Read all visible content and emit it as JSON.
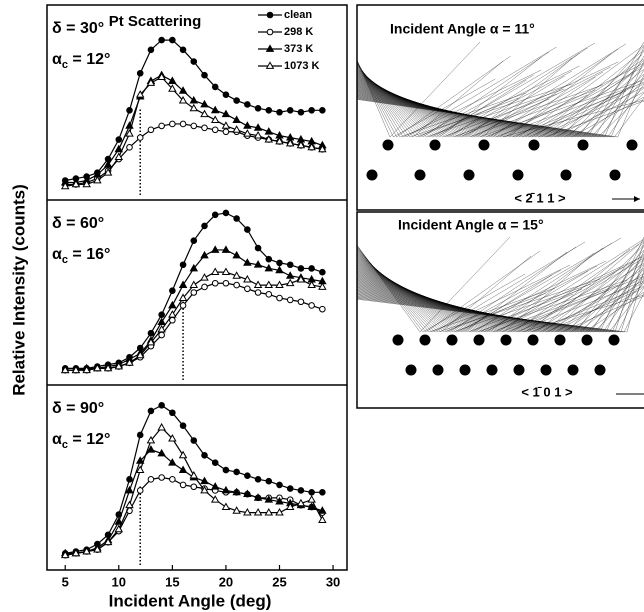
{
  "figure": {
    "ylabel": "Relative Intensity (counts)"
  },
  "chart_data": [
    {
      "type": "line",
      "title": "Pt Scattering",
      "annotation": "δ = 30°",
      "critical_angle": 12,
      "critical_label": [
        "α",
        "c",
        " = 12°"
      ],
      "legend": "upper right",
      "xlim": [
        3.3,
        31.3
      ],
      "ylim": [
        0,
        100
      ],
      "x": [
        5,
        6,
        7,
        8,
        9,
        10,
        11,
        12,
        13,
        14,
        15,
        16,
        17,
        18,
        19,
        20,
        21,
        22,
        23,
        24,
        25,
        26,
        27,
        28,
        29
      ],
      "series": [
        {
          "name": "clean",
          "color": "#000000",
          "marker": "filled-circle",
          "values": [
            10,
            11,
            12,
            14,
            21,
            31,
            46,
            65,
            77,
            82,
            82,
            77,
            71,
            64,
            58,
            54,
            51,
            49,
            47,
            46,
            45,
            46,
            45,
            46,
            46
          ]
        },
        {
          "name": "298 K",
          "color": "#000000",
          "marker": "open-circle",
          "values": [
            8,
            8,
            9,
            11,
            15,
            21,
            27,
            32,
            36,
            38,
            39,
            39,
            38,
            37,
            36,
            35,
            35,
            33,
            32,
            31,
            30,
            29,
            28,
            27,
            26
          ]
        },
        {
          "name": "373 K",
          "color": "#000000",
          "marker": "filled-triangle",
          "values": [
            9,
            9,
            10,
            13,
            18,
            26,
            38,
            53,
            61,
            64,
            61,
            56,
            51,
            49,
            46,
            44,
            41,
            38,
            37,
            35,
            33,
            32,
            31,
            30,
            28
          ]
        },
        {
          "name": "1073 K",
          "color": "#000000",
          "marker": "open-triangle",
          "values": [
            7,
            8,
            8,
            10,
            14,
            22,
            34,
            54,
            60,
            63,
            57,
            51,
            47,
            44,
            41,
            38,
            36,
            34,
            33,
            31,
            30,
            29,
            28,
            27,
            26
          ]
        }
      ]
    },
    {
      "type": "line",
      "annotation": "δ = 60°",
      "critical_angle": 16,
      "critical_label": [
        "α",
        "c",
        " = 16°"
      ],
      "xlim": [
        3.3,
        31.3
      ],
      "ylim": [
        0,
        100
      ],
      "x": [
        5,
        6,
        7,
        8,
        9,
        10,
        11,
        12,
        13,
        14,
        15,
        16,
        17,
        18,
        19,
        20,
        21,
        22,
        23,
        24,
        25,
        26,
        27,
        28,
        29
      ],
      "series": [
        {
          "color": "#000000",
          "marker": "filled-circle",
          "values": [
            9,
            9,
            9,
            10,
            11,
            12,
            15,
            20,
            28,
            38,
            51,
            65,
            78,
            86,
            92,
            93,
            90,
            84,
            74,
            68,
            66,
            65,
            63,
            63,
            61
          ]
        },
        {
          "color": "#000000",
          "marker": "open-circle",
          "values": [
            8,
            8,
            8,
            9,
            9,
            10,
            12,
            15,
            21,
            27,
            35,
            43,
            50,
            53,
            55,
            55,
            54,
            52,
            50,
            49,
            47,
            46,
            45,
            43,
            41
          ]
        },
        {
          "color": "#000000",
          "marker": "filled-triangle",
          "values": [
            8,
            8,
            9,
            9,
            10,
            11,
            14,
            17,
            24,
            34,
            43,
            54,
            63,
            70,
            73,
            73,
            70,
            66,
            65,
            63,
            62,
            59,
            58,
            57,
            56
          ]
        },
        {
          "color": "#000000",
          "marker": "open-triangle",
          "values": [
            8,
            8,
            8,
            9,
            9,
            10,
            12,
            16,
            23,
            30,
            38,
            47,
            54,
            58,
            61,
            61,
            59,
            57,
            54,
            54,
            54,
            55,
            57,
            54,
            53
          ]
        }
      ]
    },
    {
      "type": "line",
      "annotation": "δ = 90°",
      "critical_angle": 12,
      "critical_label": [
        "α",
        "c",
        " = 12°"
      ],
      "xlabel": "Incident Angle (deg)",
      "xlim": [
        3.3,
        31.3
      ],
      "ylim": [
        0,
        100
      ],
      "xticks": [
        5,
        10,
        15,
        20,
        25,
        30
      ],
      "x": [
        5,
        6,
        7,
        8,
        9,
        10,
        11,
        12,
        13,
        14,
        15,
        16,
        17,
        18,
        19,
        20,
        21,
        22,
        23,
        24,
        25,
        26,
        27,
        28,
        29
      ],
      "series": [
        {
          "color": "#000000",
          "marker": "filled-circle",
          "values": [
            9,
            10,
            11,
            14,
            19,
            30,
            49,
            73,
            86,
            89,
            85,
            78,
            70,
            62,
            58,
            54,
            53,
            51,
            49,
            48,
            46,
            44,
            43,
            42,
            42
          ]
        },
        {
          "color": "#000000",
          "marker": "open-circle",
          "values": [
            8,
            9,
            10,
            11,
            15,
            21,
            32,
            43,
            49,
            50,
            49,
            46,
            45,
            44,
            43,
            42,
            42,
            41,
            39,
            39,
            39,
            38,
            35,
            34,
            31
          ]
        },
        {
          "color": "#000000",
          "marker": "filled-triangle",
          "values": [
            9,
            9,
            10,
            12,
            16,
            26,
            43,
            59,
            65,
            63,
            58,
            54,
            50,
            48,
            45,
            43,
            42,
            41,
            39,
            38,
            37,
            36,
            35,
            34,
            32
          ]
        },
        {
          "color": "#000000",
          "marker": "open-triangle",
          "values": [
            8,
            9,
            10,
            11,
            15,
            22,
            35,
            54,
            70,
            77,
            71,
            62,
            51,
            43,
            38,
            34,
            32,
            31,
            31,
            31,
            31,
            34,
            36,
            38,
            27
          ]
        }
      ]
    }
  ],
  "diagrams": [
    {
      "title": "Incident Angle α = 11°",
      "direction": "< 2̄ 1 1 >"
    },
    {
      "title": "Incident Angle α = 15°",
      "direction": "< 1̄ 0 1 >"
    }
  ]
}
